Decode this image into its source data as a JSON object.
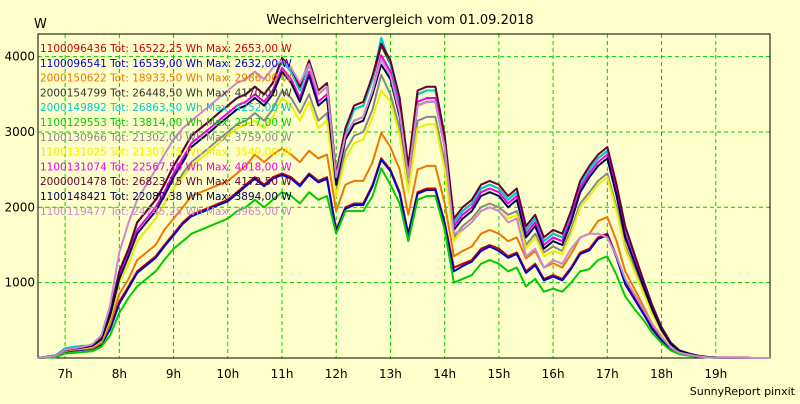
{
  "chart_data": {
    "type": "line",
    "title": "Wechselrichtervergleich vom 01.09.2018",
    "ylabel": "W",
    "xlabel": "",
    "footer": "SunnyReport pinxit",
    "ylim": [
      0,
      4300
    ],
    "xlim": [
      6.5,
      20.0
    ],
    "yticks": [
      1000,
      2000,
      3000,
      4000
    ],
    "xticks": [
      {
        "v": 7,
        "label": "7h"
      },
      {
        "v": 8,
        "label": "8h"
      },
      {
        "v": 9,
        "label": "9h"
      },
      {
        "v": 10,
        "label": "10h"
      },
      {
        "v": 11,
        "label": "11h"
      },
      {
        "v": 12,
        "label": "12h"
      },
      {
        "v": 13,
        "label": "13h"
      },
      {
        "v": 14,
        "label": "14h"
      },
      {
        "v": 15,
        "label": "15h"
      },
      {
        "v": 16,
        "label": "16h"
      },
      {
        "v": 17,
        "label": "17h"
      },
      {
        "v": 18,
        "label": "18h"
      },
      {
        "v": 19,
        "label": "19h"
      }
    ],
    "grid": true,
    "legend_position": "top-left",
    "x": [
      6.5,
      6.83,
      7.0,
      7.17,
      7.33,
      7.5,
      7.67,
      7.83,
      8.0,
      8.17,
      8.33,
      8.5,
      8.67,
      8.83,
      9.0,
      9.17,
      9.33,
      9.5,
      9.67,
      9.83,
      10.0,
      10.17,
      10.33,
      10.5,
      10.67,
      10.83,
      11.0,
      11.17,
      11.33,
      11.5,
      11.67,
      11.83,
      12.0,
      12.17,
      12.33,
      12.5,
      12.67,
      12.83,
      13.0,
      13.17,
      13.33,
      13.5,
      13.67,
      13.83,
      14.0,
      14.17,
      14.33,
      14.5,
      14.67,
      14.83,
      15.0,
      15.17,
      15.33,
      15.5,
      15.67,
      15.83,
      16.0,
      16.17,
      16.33,
      16.5,
      16.67,
      16.83,
      17.0,
      17.17,
      17.33,
      17.5,
      17.67,
      17.83,
      18.0,
      18.17,
      18.33,
      18.5,
      18.67,
      18.83,
      19.0,
      19.33,
      19.67,
      20.0
    ],
    "series": [
      {
        "name": "1100096436 Tot: 16522,25 Wh Max: 2653,00 W",
        "color": "#cc0000",
        "values": [
          0,
          20,
          80,
          100,
          110,
          120,
          180,
          400,
          750,
          950,
          1150,
          1250,
          1350,
          1500,
          1650,
          1800,
          1900,
          1950,
          2000,
          2050,
          2100,
          2200,
          2300,
          2400,
          2300,
          2400,
          2450,
          2400,
          2300,
          2450,
          2350,
          2400,
          1700,
          2000,
          2050,
          2050,
          2300,
          2650,
          2500,
          2200,
          1650,
          2200,
          2250,
          2250,
          1800,
          1200,
          1250,
          1300,
          1450,
          1500,
          1450,
          1350,
          1400,
          1150,
          1250,
          1050,
          1100,
          1050,
          1200,
          1400,
          1450,
          1600,
          1650,
          1350,
          1000,
          800,
          600,
          400,
          250,
          120,
          60,
          40,
          20,
          10,
          5,
          2,
          0,
          0
        ]
      },
      {
        "name": "1100096541 Tot: 16539,00 Wh Max: 2632,00 W",
        "color": "#0000cc",
        "values": [
          0,
          20,
          80,
          100,
          110,
          120,
          180,
          380,
          720,
          930,
          1130,
          1230,
          1330,
          1480,
          1630,
          1780,
          1880,
          1930,
          1980,
          2030,
          2080,
          2180,
          2280,
          2380,
          2280,
          2380,
          2430,
          2380,
          2280,
          2430,
          2330,
          2380,
          1680,
          1980,
          2030,
          2030,
          2280,
          2630,
          2480,
          2180,
          1630,
          2180,
          2230,
          2230,
          1780,
          1150,
          1220,
          1280,
          1420,
          1480,
          1420,
          1330,
          1380,
          1130,
          1230,
          1030,
          1080,
          1030,
          1180,
          1380,
          1430,
          1580,
          1630,
          1330,
          980,
          780,
          580,
          380,
          230,
          110,
          55,
          35,
          18,
          8,
          4,
          2,
          0,
          0
        ]
      },
      {
        "name": "2000150622 Tot: 18933,50 Wh Max: 2986,00 W",
        "color": "#ee7700",
        "values": [
          0,
          25,
          90,
          110,
          120,
          130,
          200,
          450,
          850,
          1050,
          1300,
          1400,
          1500,
          1700,
          1850,
          2000,
          2150,
          2200,
          2250,
          2300,
          2350,
          2450,
          2550,
          2700,
          2600,
          2700,
          2780,
          2700,
          2600,
          2750,
          2650,
          2700,
          1950,
          2300,
          2350,
          2350,
          2600,
          2986,
          2800,
          2500,
          1900,
          2500,
          2550,
          2550,
          2050,
          1350,
          1420,
          1480,
          1650,
          1700,
          1650,
          1550,
          1600,
          1320,
          1420,
          1200,
          1260,
          1200,
          1380,
          1600,
          1650,
          1820,
          1870,
          1550,
          1150,
          920,
          680,
          450,
          280,
          140,
          70,
          45,
          22,
          11,
          5,
          2,
          0,
          0
        ]
      },
      {
        "name": "2000154799 Tot: 26448,50 Wh Max: 4170,00 W",
        "color": "#333333",
        "values": [
          0,
          30,
          110,
          130,
          150,
          170,
          260,
          600,
          1150,
          1450,
          1800,
          1950,
          2100,
          2300,
          2550,
          2750,
          2950,
          3050,
          3150,
          3250,
          3350,
          3450,
          3500,
          3600,
          3500,
          3650,
          3950,
          3800,
          3550,
          3900,
          3500,
          3600,
          2400,
          3000,
          3300,
          3350,
          3700,
          4150,
          3900,
          3400,
          2500,
          3500,
          3550,
          3550,
          2900,
          1800,
          1950,
          2050,
          2250,
          2300,
          2250,
          2100,
          2200,
          1700,
          1850,
          1550,
          1650,
          1600,
          1900,
          2300,
          2500,
          2650,
          2750,
          2250,
          1700,
          1350,
          1000,
          680,
          400,
          200,
          100,
          60,
          30,
          15,
          7,
          3,
          0,
          0
        ]
      },
      {
        "name": "2000149892 Tot: 26863,50 Wh Max: 4252,00 W",
        "color": "#00cccc",
        "values": [
          0,
          40,
          130,
          150,
          160,
          170,
          260,
          600,
          1150,
          1450,
          1800,
          1950,
          2100,
          2300,
          2550,
          2750,
          2950,
          3050,
          3150,
          3250,
          3350,
          3450,
          3500,
          3600,
          3500,
          3650,
          3950,
          3800,
          3550,
          3900,
          3500,
          3600,
          2400,
          3000,
          3300,
          3350,
          3700,
          4252,
          3900,
          3400,
          2500,
          3500,
          3550,
          3550,
          2900,
          1800,
          1950,
          2050,
          2250,
          2300,
          2250,
          2100,
          2200,
          1700,
          1850,
          1550,
          1650,
          1600,
          1900,
          2300,
          2500,
          2650,
          2750,
          2250,
          1700,
          1350,
          1000,
          680,
          400,
          200,
          100,
          60,
          30,
          15,
          7,
          3,
          0,
          0
        ]
      },
      {
        "name": "1100129553 Tot: 13814,00 Wh Max: 2517,00 W",
        "color": "#00cc00",
        "values": [
          0,
          10,
          60,
          70,
          80,
          90,
          150,
          300,
          600,
          800,
          950,
          1050,
          1150,
          1300,
          1450,
          1550,
          1650,
          1700,
          1750,
          1800,
          1850,
          1950,
          2000,
          2100,
          2000,
          2100,
          2200,
          2150,
          2050,
          2200,
          2100,
          2150,
          1650,
          1950,
          1950,
          1950,
          2150,
          2517,
          2300,
          2050,
          1550,
          2100,
          2150,
          2150,
          1700,
          1000,
          1050,
          1100,
          1250,
          1300,
          1250,
          1150,
          1200,
          950,
          1050,
          880,
          920,
          880,
          1000,
          1150,
          1180,
          1300,
          1350,
          1100,
          820,
          650,
          500,
          330,
          200,
          100,
          50,
          32,
          16,
          8,
          4,
          2,
          0,
          0
        ]
      },
      {
        "name": "1100130966 Tot: 21302,00 Wh Max: 3759,00 W",
        "color": "#888888",
        "values": [
          0,
          25,
          100,
          120,
          130,
          150,
          230,
          520,
          1000,
          1250,
          1550,
          1700,
          1850,
          2050,
          2250,
          2450,
          2600,
          2700,
          2800,
          2900,
          3000,
          3100,
          3150,
          3250,
          3150,
          3300,
          3550,
          3450,
          3250,
          3500,
          3150,
          3250,
          2200,
          2750,
          2950,
          3000,
          3300,
          3759,
          3500,
          3050,
          2250,
          3150,
          3200,
          3200,
          2600,
          1600,
          1750,
          1850,
          2000,
          2050,
          2000,
          1900,
          1950,
          1500,
          1650,
          1400,
          1480,
          1420,
          1700,
          2050,
          2200,
          2350,
          2450,
          2000,
          1500,
          1200,
          880,
          600,
          350,
          180,
          90,
          55,
          28,
          14,
          6,
          3,
          0,
          0
        ]
      },
      {
        "name": "1100131025 Tot: 21307,75 Wh Max: 3549,00 W",
        "color": "#eeee00",
        "values": [
          0,
          25,
          100,
          120,
          130,
          150,
          230,
          520,
          1000,
          1250,
          1550,
          1700,
          1850,
          2050,
          2250,
          2400,
          2550,
          2650,
          2750,
          2850,
          2950,
          3050,
          3100,
          3150,
          3050,
          3200,
          3450,
          3350,
          3150,
          3400,
          3050,
          3150,
          2150,
          2650,
          2850,
          2900,
          3200,
          3549,
          3400,
          2950,
          2200,
          3050,
          3100,
          3100,
          2500,
          1550,
          1700,
          1800,
          1950,
          2000,
          1950,
          1850,
          1900,
          1450,
          1600,
          1350,
          1420,
          1380,
          1650,
          2000,
          2150,
          2300,
          2400,
          1950,
          1450,
          1150,
          850,
          580,
          340,
          170,
          85,
          52,
          26,
          13,
          6,
          3,
          0,
          0
        ]
      },
      {
        "name": "1100131074 Tot: 22567,50 Wh Max: 4018,00 W",
        "color": "#ee00ee",
        "values": [
          0,
          30,
          110,
          130,
          150,
          170,
          260,
          580,
          1100,
          1400,
          1700,
          1850,
          2000,
          2200,
          2450,
          2650,
          2850,
          2950,
          3050,
          3150,
          3250,
          3350,
          3400,
          3500,
          3400,
          3550,
          3850,
          3700,
          3450,
          3800,
          3400,
          3500,
          2350,
          2950,
          3150,
          3200,
          3550,
          4018,
          3800,
          3300,
          2450,
          3400,
          3450,
          3450,
          2850,
          1750,
          1900,
          2000,
          2200,
          2250,
          2200,
          2050,
          2150,
          1650,
          1800,
          1500,
          1600,
          1550,
          1850,
          2250,
          2450,
          2600,
          2700,
          2200,
          1650,
          1300,
          960,
          650,
          380,
          190,
          95,
          58,
          29,
          14,
          6,
          3,
          0,
          0
        ]
      },
      {
        "name": "2000001478 Tot: 26823,75 Wh Max: 4172,50 W",
        "color": "#660033",
        "values": [
          0,
          30,
          110,
          130,
          150,
          170,
          260,
          600,
          1150,
          1450,
          1800,
          1950,
          2100,
          2300,
          2550,
          2750,
          2950,
          3050,
          3150,
          3250,
          3350,
          3450,
          3500,
          3600,
          3500,
          3650,
          3980,
          3850,
          3600,
          3950,
          3550,
          3650,
          2450,
          3050,
          3350,
          3400,
          3750,
          4172,
          3950,
          3450,
          2550,
          3550,
          3600,
          3600,
          2950,
          1850,
          2000,
          2100,
          2300,
          2350,
          2300,
          2150,
          2250,
          1750,
          1900,
          1600,
          1700,
          1650,
          1950,
          2350,
          2550,
          2700,
          2800,
          2300,
          1750,
          1380,
          1020,
          700,
          410,
          205,
          100,
          60,
          30,
          15,
          7,
          3,
          0,
          0
        ]
      },
      {
        "name": "1100148421 Tot: 22080,38 Wh Max: 3894,00 W",
        "color": "#000055",
        "values": [
          0,
          28,
          105,
          125,
          140,
          160,
          245,
          560,
          1050,
          1350,
          1650,
          1800,
          1950,
          2150,
          2400,
          2600,
          2800,
          2900,
          3000,
          3100,
          3200,
          3300,
          3350,
          3450,
          3350,
          3500,
          3800,
          3650,
          3400,
          3750,
          3350,
          3450,
          2300,
          2900,
          3100,
          3150,
          3500,
          3894,
          3700,
          3200,
          2400,
          3350,
          3400,
          3400,
          2800,
          1700,
          1850,
          1950,
          2150,
          2200,
          2150,
          2000,
          2100,
          1600,
          1750,
          1450,
          1550,
          1500,
          1800,
          2200,
          2400,
          2550,
          2650,
          2150,
          1600,
          1270,
          940,
          640,
          370,
          185,
          92,
          56,
          28,
          14,
          6,
          3,
          0,
          0
        ]
      },
      {
        "name": "1100119477 Tot: 24745,25 Wh Max: 3965,00 W",
        "color": "#cc88cc",
        "values": [
          0,
          30,
          110,
          130,
          150,
          180,
          300,
          700,
          1400,
          1800,
          2100,
          2300,
          2500,
          2700,
          2900,
          3050,
          3150,
          3250,
          3350,
          3450,
          3550,
          3650,
          3700,
          3800,
          3700,
          3850,
          3950,
          3850,
          3650,
          3900,
          3500,
          3600,
          2400,
          2950,
          3150,
          3200,
          3550,
          3965,
          3750,
          3250,
          2400,
          3350,
          3400,
          3400,
          2800,
          1650,
          1700,
          1800,
          1950,
          2000,
          1950,
          1800,
          1850,
          1350,
          1450,
          1200,
          1300,
          1250,
          1450,
          1600,
          1650,
          1650,
          1600,
          1350,
          1050,
          850,
          640,
          450,
          280,
          140,
          70,
          45,
          22,
          11,
          5,
          2,
          0,
          0
        ]
      }
    ]
  }
}
